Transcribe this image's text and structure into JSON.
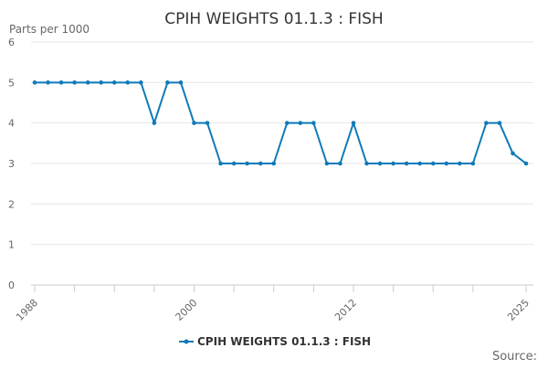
{
  "chart_data": {
    "type": "line",
    "title": "CPIH WEIGHTS 01.1.3 : FISH",
    "ylabel": "Parts per 1000",
    "xlabel": "",
    "x": [
      1988,
      1989,
      1990,
      1991,
      1992,
      1993,
      1994,
      1995,
      1996,
      1997,
      1998,
      1999,
      2000,
      2001,
      2002,
      2003,
      2004,
      2005,
      2006,
      2007,
      2008,
      2009,
      2010,
      2011,
      2012,
      2013,
      2014,
      2015,
      2016,
      2017,
      2018,
      2019,
      2020,
      2021,
      2022,
      2023,
      2024,
      2025
    ],
    "series": [
      {
        "name": "CPIH WEIGHTS 01.1.3 : FISH",
        "color": "#0f7ab8",
        "values": [
          5,
          5,
          5,
          5,
          5,
          5,
          5,
          5,
          5,
          4,
          5,
          5,
          4,
          4,
          3,
          3,
          3,
          3,
          3,
          4,
          4,
          4,
          3,
          3,
          4,
          3,
          3,
          3,
          3,
          3,
          3,
          3,
          3,
          3,
          4,
          4,
          3.25,
          3
        ]
      }
    ],
    "xlim": [
      1988,
      2025
    ],
    "ylim": [
      0,
      6
    ],
    "y_ticks": [
      0,
      1,
      2,
      3,
      4,
      5,
      6
    ],
    "x_tick_labels": [
      "1988",
      "2000",
      "2012",
      "2025"
    ],
    "x_tick_label_years": [
      1988,
      2000,
      2012,
      2025
    ],
    "x_minor_ticks": [
      1991,
      1994,
      1997,
      2003,
      2006,
      2009,
      2015,
      2018,
      2021
    ],
    "grid": true,
    "legend": "bottom-center",
    "source_label": "Source:"
  }
}
